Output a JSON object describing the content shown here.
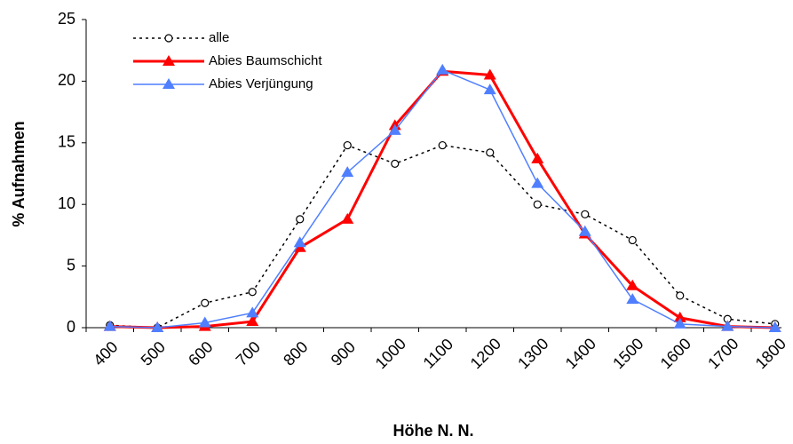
{
  "chart_data": {
    "type": "line",
    "x_label": "Höhe N. N.",
    "y_label": "% Aufnahmen",
    "categories": [
      "400",
      "500",
      "600",
      "700",
      "800",
      "900",
      "1000",
      "1100",
      "1200",
      "1300",
      "1400",
      "1500",
      "1600",
      "1700",
      "1800"
    ],
    "series": [
      {
        "name": "alle",
        "color": "#000000",
        "marker": "circle",
        "style": "dotted",
        "width": 1.5,
        "values": [
          0.2,
          0,
          2.0,
          2.9,
          8.8,
          14.8,
          13.3,
          14.8,
          14.2,
          10.0,
          9.2,
          7.1,
          2.6,
          0.7,
          0.3
        ]
      },
      {
        "name": "Abies Baumschicht",
        "color": "#ff0000",
        "marker": "triangle",
        "style": "solid",
        "width": 3,
        "values": [
          0.1,
          0,
          0.1,
          0.5,
          6.5,
          8.8,
          16.4,
          20.8,
          20.5,
          13.7,
          7.6,
          3.4,
          0.8,
          0.1,
          0
        ]
      },
      {
        "name": "Abies Verjüngung",
        "color": "#4f7fff",
        "marker": "triangle",
        "style": "solid",
        "width": 1.5,
        "values": [
          0.1,
          0,
          0.4,
          1.2,
          6.9,
          12.6,
          16.0,
          20.9,
          19.3,
          11.7,
          7.8,
          2.3,
          0.3,
          0.1,
          0
        ]
      }
    ],
    "ylim": [
      0,
      25
    ],
    "yticks": [
      0,
      5,
      10,
      15,
      20,
      25
    ],
    "grid": false,
    "legend": "top-left"
  }
}
